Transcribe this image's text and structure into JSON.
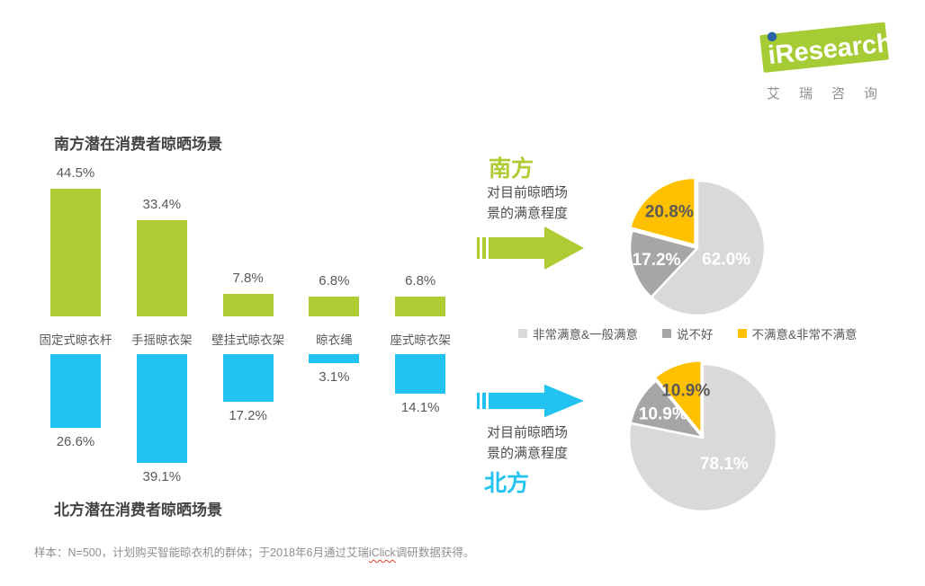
{
  "logo": {
    "brand": "iResearch",
    "subtext": "艾瑞咨询",
    "green": "#A6CC35",
    "blue": "#2B63A8"
  },
  "colors": {
    "south": "#AFCC35",
    "north": "#22C3F0",
    "satisfied_gray": "#D9D9D9",
    "unsure_gray": "#A6A6A6",
    "unsatisfied_yellow": "#FFC000",
    "title_dark": "#434343",
    "label_gray": "#595959"
  },
  "chart_data": [
    {
      "type": "bar",
      "title": "南方潜在消费者晾晒场景",
      "region": "南方",
      "orientation": "up",
      "categories": [
        "固定式晾衣杆",
        "手摇晾衣架",
        "壁挂式晾衣架",
        "晾衣绳",
        "座式晾衣架"
      ],
      "values": [
        44.5,
        33.4,
        7.8,
        6.8,
        6.8
      ],
      "unit": "%",
      "color": "#AFCC35"
    },
    {
      "type": "bar",
      "title": "北方潜在消费者晾晒场景",
      "region": "北方",
      "orientation": "down",
      "categories": [
        "固定式晾衣杆",
        "手摇晾衣架",
        "壁挂式晾衣架",
        "晾衣绳",
        "座式晾衣架"
      ],
      "values": [
        26.6,
        39.1,
        17.2,
        3.1,
        14.1
      ],
      "unit": "%",
      "color": "#22C3F0"
    },
    {
      "type": "pie",
      "region": "南方",
      "prompt": "对目前晾晒场景的满意程度",
      "slices": [
        {
          "label": "非常满意&一般满意",
          "value": 62.0,
          "color": "#D9D9D9"
        },
        {
          "label": "说不好",
          "value": 17.2,
          "color": "#A6A6A6"
        },
        {
          "label": "不满意&非常不满意",
          "value": 20.8,
          "color": "#FFC000"
        }
      ],
      "start_angle_deg": 0,
      "legend_position": "bottom"
    },
    {
      "type": "pie",
      "region": "北方",
      "prompt": "对目前晾晒场景的满意程度",
      "slices": [
        {
          "label": "非常满意&一般满意",
          "value": 78.1,
          "color": "#D9D9D9"
        },
        {
          "label": "说不好",
          "value": 10.9,
          "color": "#A6A6A6"
        },
        {
          "label": "不满意&非常不满意",
          "value": 10.9,
          "color": "#FFC000"
        }
      ],
      "start_angle_deg": 0,
      "legend_position": "shared"
    }
  ],
  "legend": [
    {
      "label": "非常满意&一般满意",
      "color": "#D9D9D9"
    },
    {
      "label": "说不好",
      "color": "#A6A6A6"
    },
    {
      "label": "不满意&非常不满意",
      "color": "#FFC000"
    }
  ],
  "footer": {
    "prefix": "样本：N=500，计划购买智能晾衣机的群体；于2018年6月通过艾瑞",
    "highlight": "iClick",
    "suffix": "调研数据获得。"
  }
}
